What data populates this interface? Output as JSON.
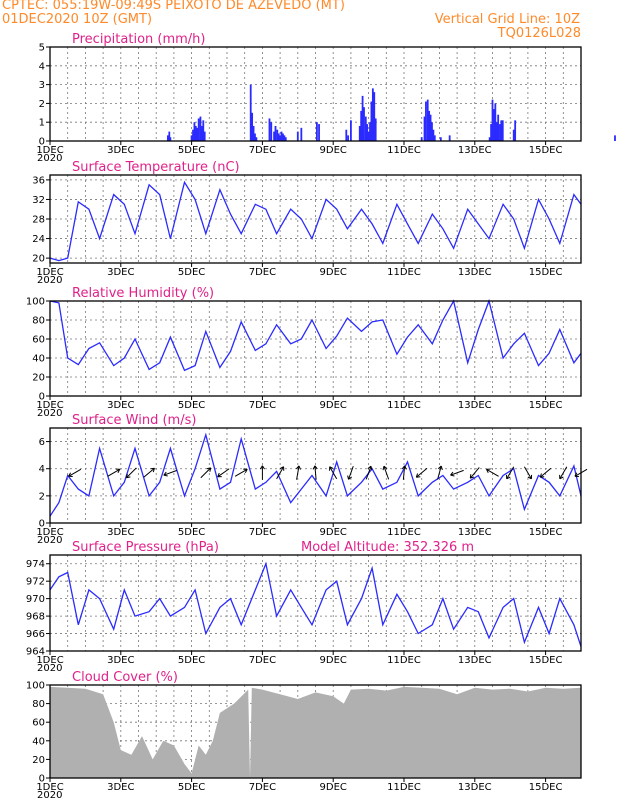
{
  "header": {
    "line1_left": "CPTEC:   055:19W-09:49S   PEIXOTO DE AZEVEDO (MT)",
    "line2_left": "01DEC2020 10Z (GMT)",
    "line2_right": "Vertical Grid Line: 10Z",
    "line3_right": "TQ0126L028"
  },
  "colors": {
    "header": "#ff8a2a",
    "panel_title": "#e0218a",
    "series": "#2b2bff",
    "cloud": "#b0b0b0",
    "wind_arrow": "#000000"
  },
  "x_axis": {
    "ticks": [
      "1DEC",
      "3DEC",
      "5DEC",
      "7DEC",
      "9DEC",
      "11DEC",
      "13DEC",
      "15DEC"
    ],
    "tick_days": [
      0,
      2,
      4,
      6,
      8,
      10,
      12,
      14
    ],
    "year_label": "2020",
    "range_days": [
      0,
      15
    ]
  },
  "chart_data": [
    {
      "type": "bar",
      "title": "Precipitation (mm/h)",
      "ylim": [
        0,
        5
      ],
      "yticks": [
        0,
        1,
        2,
        3,
        4,
        5
      ],
      "grid": true,
      "x_days": [
        3.33,
        3.37,
        3.4,
        4.0,
        4.04,
        4.08,
        4.12,
        4.16,
        4.2,
        4.25,
        4.29,
        4.33,
        4.37,
        5.67,
        5.71,
        5.75,
        5.79,
        5.83,
        6.2,
        6.25,
        6.33,
        6.37,
        6.42,
        6.46,
        6.5,
        6.54,
        6.58,
        6.62,
        6.66,
        7.0,
        7.1,
        7.54,
        7.6,
        8.37,
        8.42,
        8.5,
        8.75,
        8.79,
        8.83,
        8.87,
        8.92,
        8.96,
        9.0,
        9.04,
        9.08,
        9.12,
        9.16,
        9.2,
        10.5,
        10.58,
        10.62,
        10.67,
        10.71,
        10.75,
        10.79,
        10.83,
        10.87,
        11.04,
        11.29,
        12.42,
        12.46,
        12.5,
        12.54,
        12.58,
        12.62,
        12.66,
        12.71,
        12.75,
        12.79,
        13.1,
        13.14,
        15.96
      ],
      "values": [
        0.3,
        0.5,
        0.2,
        0.3,
        0.6,
        1.0,
        0.8,
        0.7,
        1.2,
        1.3,
        0.8,
        1.1,
        0.5,
        3.0,
        1.5,
        0.8,
        0.4,
        0.2,
        1.2,
        1.0,
        0.5,
        0.8,
        0.6,
        0.4,
        0.3,
        0.5,
        0.4,
        0.3,
        0.2,
        0.5,
        0.7,
        1.0,
        0.9,
        0.6,
        0.3,
        1.1,
        0.8,
        1.6,
        2.4,
        1.8,
        1.3,
        0.9,
        0.5,
        1.0,
        2.1,
        2.8,
        2.6,
        1.2,
        0.2,
        1.3,
        2.1,
        2.2,
        1.6,
        1.4,
        1.0,
        0.6,
        0.3,
        0.2,
        0.3,
        0.2,
        0.9,
        2.2,
        1.7,
        2.0,
        1.0,
        1.4,
        0.9,
        1.1,
        1.1,
        0.6,
        1.1,
        0.3
      ]
    },
    {
      "type": "line",
      "title": "Surface Temperature (nC)",
      "ylim": [
        19,
        37
      ],
      "yticks": [
        20,
        24,
        28,
        32,
        36
      ],
      "grid": true,
      "x_days": [
        0,
        0.25,
        0.5,
        0.8,
        1.1,
        1.4,
        1.8,
        2.1,
        2.4,
        2.8,
        3.1,
        3.4,
        3.8,
        4.1,
        4.4,
        4.8,
        5.1,
        5.4,
        5.8,
        6.1,
        6.4,
        6.8,
        7.1,
        7.4,
        7.8,
        8.1,
        8.4,
        8.8,
        9.1,
        9.4,
        9.8,
        10.1,
        10.4,
        10.8,
        11.1,
        11.4,
        11.8,
        12.1,
        12.4,
        12.8,
        13.1,
        13.4,
        13.8,
        14.1,
        14.4,
        14.8,
        15.0
      ],
      "values": [
        20,
        19.5,
        20,
        31.5,
        30,
        24,
        33,
        31,
        25,
        35,
        33,
        24,
        35.5,
        32,
        25,
        34,
        29,
        25,
        31,
        30,
        25,
        30,
        28,
        24,
        32,
        30,
        26,
        30,
        27,
        23,
        31,
        27,
        23,
        29,
        26,
        22,
        30,
        27,
        24,
        31,
        28,
        22,
        32,
        28,
        23,
        33,
        31
      ]
    },
    {
      "type": "line",
      "title": "Relative Humidity (%)",
      "ylim": [
        0,
        100
      ],
      "yticks": [
        0,
        20,
        40,
        60,
        80,
        100
      ],
      "grid": true,
      "x_days": [
        0,
        0.25,
        0.5,
        0.8,
        1.1,
        1.4,
        1.8,
        2.1,
        2.4,
        2.8,
        3.1,
        3.4,
        3.8,
        4.1,
        4.4,
        4.8,
        5.1,
        5.4,
        5.8,
        6.1,
        6.4,
        6.8,
        7.1,
        7.4,
        7.8,
        8.1,
        8.4,
        8.8,
        9.1,
        9.4,
        9.8,
        10.1,
        10.4,
        10.8,
        11.1,
        11.4,
        11.8,
        12.1,
        12.4,
        12.8,
        13.1,
        13.4,
        13.8,
        14.1,
        14.4,
        14.8,
        15.0
      ],
      "values": [
        100,
        98,
        40,
        33,
        50,
        56,
        32,
        40,
        60,
        28,
        35,
        62,
        27,
        32,
        68,
        30,
        47,
        78,
        48,
        55,
        75,
        55,
        60,
        80,
        50,
        63,
        82,
        68,
        78,
        80,
        44,
        62,
        75,
        55,
        80,
        100,
        35,
        70,
        100,
        40,
        55,
        66,
        32,
        45,
        70,
        35,
        45
      ]
    },
    {
      "type": "line",
      "title": "Surface Wind (m/s)",
      "ylim": [
        0,
        7
      ],
      "yticks": [
        0,
        2,
        4,
        6
      ],
      "grid": true,
      "x_days": [
        0,
        0.25,
        0.5,
        0.8,
        1.1,
        1.4,
        1.8,
        2.1,
        2.4,
        2.8,
        3.1,
        3.4,
        3.8,
        4.1,
        4.4,
        4.8,
        5.1,
        5.4,
        5.8,
        6.1,
        6.4,
        6.8,
        7.1,
        7.4,
        7.8,
        8.1,
        8.4,
        8.8,
        9.1,
        9.4,
        9.8,
        10.1,
        10.4,
        10.8,
        11.1,
        11.4,
        11.8,
        12.1,
        12.4,
        12.8,
        13.1,
        13.4,
        13.8,
        14.1,
        14.4,
        14.8,
        15.0
      ],
      "values": [
        0.5,
        1.5,
        3.5,
        2.5,
        2,
        5.5,
        2,
        3,
        5.5,
        2,
        3,
        5.5,
        2,
        4,
        6.5,
        2.5,
        3,
        6.2,
        2.5,
        3,
        3.8,
        1.5,
        2.5,
        3.5,
        2,
        4.5,
        2,
        3,
        4,
        2.5,
        3,
        4.5,
        2,
        3,
        3.5,
        2.5,
        3,
        3.5,
        2,
        3.5,
        4,
        1,
        3.5,
        3,
        2,
        4.2,
        2
      ],
      "arrows_x_days": [
        0.7,
        1.8,
        2.3,
        2.8,
        3.4,
        4.4,
        4.9,
        5.4,
        6.0,
        6.5,
        7.0,
        7.5,
        8.0,
        8.5,
        9.0,
        9.5,
        10.0,
        10.5,
        11.0,
        11.5,
        12.0,
        12.5,
        13.0,
        13.5,
        14.0,
        14.5,
        15.0
      ],
      "arrows_angle_deg": [
        210,
        30,
        225,
        40,
        200,
        45,
        215,
        30,
        90,
        60,
        80,
        95,
        120,
        250,
        70,
        110,
        85,
        220,
        75,
        200,
        230,
        150,
        240,
        300,
        220,
        240,
        210
      ]
    },
    {
      "type": "line",
      "title": "Surface Pressure (hPa)",
      "annotation": "Model Altitude: 352.326 m",
      "ylim": [
        964,
        975
      ],
      "yticks": [
        964,
        966,
        968,
        970,
        972,
        974
      ],
      "grid": true,
      "x_days": [
        0,
        0.25,
        0.5,
        0.8,
        1.1,
        1.4,
        1.8,
        2.1,
        2.4,
        2.8,
        3.1,
        3.4,
        3.8,
        4.1,
        4.4,
        4.8,
        5.1,
        5.4,
        5.8,
        6.1,
        6.4,
        6.8,
        7.1,
        7.4,
        7.8,
        8.1,
        8.4,
        8.8,
        9.1,
        9.4,
        9.8,
        10.1,
        10.4,
        10.8,
        11.1,
        11.4,
        11.8,
        12.1,
        12.4,
        12.8,
        13.1,
        13.4,
        13.8,
        14.1,
        14.4,
        14.8,
        15.0
      ],
      "values": [
        971,
        972.5,
        973,
        967,
        971,
        970,
        966.5,
        971,
        968,
        968.5,
        970,
        968,
        969,
        971,
        966,
        969,
        970,
        967,
        971,
        974,
        968,
        971,
        969,
        967,
        971,
        972,
        967,
        970,
        973.5,
        967,
        970.5,
        968.5,
        966,
        967,
        970,
        966.5,
        969,
        968.5,
        965.5,
        969,
        970,
        965,
        969,
        966,
        970,
        967,
        964.5
      ]
    },
    {
      "type": "area",
      "title": "Cloud Cover (%)",
      "ylim": [
        0,
        100
      ],
      "yticks": [
        0,
        20,
        40,
        60,
        80,
        100
      ],
      "grid": true,
      "x_days": [
        0,
        0.5,
        1.0,
        1.5,
        1.8,
        2.0,
        2.3,
        2.6,
        2.9,
        3.2,
        3.5,
        3.8,
        4.0,
        4.2,
        4.4,
        4.6,
        4.8,
        5.2,
        5.6,
        5.65,
        5.7,
        6.0,
        6.5,
        7.0,
        7.5,
        8.0,
        8.3,
        8.5,
        9.0,
        9.5,
        10.0,
        10.5,
        11.0,
        11.5,
        12.0,
        12.5,
        13.0,
        13.5,
        14.0,
        14.5,
        15.0
      ],
      "values": [
        98,
        97,
        96,
        90,
        60,
        30,
        25,
        45,
        20,
        40,
        35,
        15,
        5,
        35,
        25,
        40,
        70,
        80,
        95,
        0,
        97,
        95,
        90,
        85,
        92,
        88,
        80,
        95,
        96,
        94,
        98,
        97,
        96,
        90,
        97,
        95,
        96,
        93,
        97,
        96,
        97
      ]
    }
  ]
}
